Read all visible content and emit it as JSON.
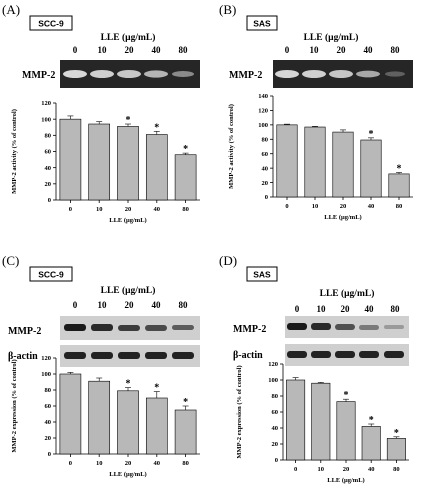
{
  "panels": [
    {
      "id": "a",
      "letter": "(A)",
      "cell_line": "SCC-9",
      "treatment_header": "LLE (µg/mL)",
      "lanes": [
        "0",
        "10",
        "20",
        "40",
        "80"
      ],
      "blot_labels": [
        "MMP-2"
      ],
      "assay": "zymography"
    },
    {
      "id": "b",
      "letter": "(B)",
      "cell_line": "SAS",
      "treatment_header": "LLE (µg/mL)",
      "lanes": [
        "0",
        "10",
        "20",
        "40",
        "80"
      ],
      "blot_labels": [
        "MMP-2"
      ],
      "assay": "zymography"
    },
    {
      "id": "c",
      "letter": "(C)",
      "cell_line": "SCC-9",
      "treatment_header": "LLE (μg/mL)",
      "lanes": [
        "0",
        "10",
        "20",
        "40",
        "80"
      ],
      "blot_labels": [
        "MMP-2",
        "β-actin"
      ],
      "assay": "western"
    },
    {
      "id": "d",
      "letter": "(D)",
      "cell_line": "SAS",
      "treatment_header": "LLE (μg/mL)",
      "lanes": [
        "0",
        "10",
        "20",
        "40",
        "80"
      ],
      "blot_labels": [
        "MMP-2",
        "β-actin"
      ],
      "assay": "western"
    }
  ],
  "chart_data": [
    {
      "panel": "A",
      "type": "bar",
      "categories": [
        "0",
        "10",
        "20",
        "40",
        "80"
      ],
      "values": [
        100,
        94,
        91,
        81,
        56
      ],
      "errors": [
        4,
        3,
        3,
        4,
        2
      ],
      "significant": [
        false,
        false,
        true,
        true,
        true
      ],
      "significance_mark": "*",
      "xlabel": "LLE (μg/mL)",
      "ylabel": "MMP-2 activity (% of control)",
      "ylim": [
        0,
        120
      ],
      "yticks": [
        "0",
        "20",
        "40",
        "60",
        "80",
        "100",
        "120"
      ],
      "grid": false
    },
    {
      "panel": "B",
      "type": "bar",
      "categories": [
        "0",
        "10",
        "20",
        "40",
        "80"
      ],
      "values": [
        100,
        97,
        90,
        79,
        32
      ],
      "errors": [
        1,
        1,
        3,
        3,
        2
      ],
      "significant": [
        false,
        false,
        false,
        true,
        true
      ],
      "significance_mark": "*",
      "xlabel": "LLE (μg/mL)",
      "ylabel": "MMP-2 activity (% of control)",
      "ylim": [
        0,
        140
      ],
      "yticks": [
        "0",
        "20",
        "40",
        "60",
        "80",
        "100",
        "120",
        "140"
      ],
      "grid": false
    },
    {
      "panel": "C",
      "type": "bar",
      "categories": [
        "0",
        "10",
        "20",
        "40",
        "80"
      ],
      "values": [
        100,
        91,
        79,
        70,
        55
      ],
      "errors": [
        2,
        4,
        4,
        8,
        5
      ],
      "significant": [
        false,
        false,
        true,
        true,
        true
      ],
      "significance_mark": "*",
      "xlabel": "LLE (μg/mL)",
      "ylabel": "MMP-2 expression (% of control)",
      "ylim": [
        0,
        120
      ],
      "yticks": [
        "0",
        "20",
        "40",
        "60",
        "80",
        "100",
        "120"
      ],
      "grid": false
    },
    {
      "panel": "D",
      "type": "bar",
      "categories": [
        "0",
        "10",
        "20",
        "40",
        "80"
      ],
      "values": [
        100,
        96,
        73,
        42,
        27
      ],
      "errors": [
        3,
        1,
        3,
        3,
        2
      ],
      "significant": [
        false,
        false,
        true,
        true,
        true
      ],
      "significance_mark": "*",
      "xlabel": "LLE (μg/mL)",
      "ylabel": "MMP-2 expression (% of control)",
      "ylim": [
        0,
        120
      ],
      "yticks": [
        "0",
        "20",
        "40",
        "60",
        "80",
        "100",
        "120"
      ],
      "grid": false
    }
  ]
}
